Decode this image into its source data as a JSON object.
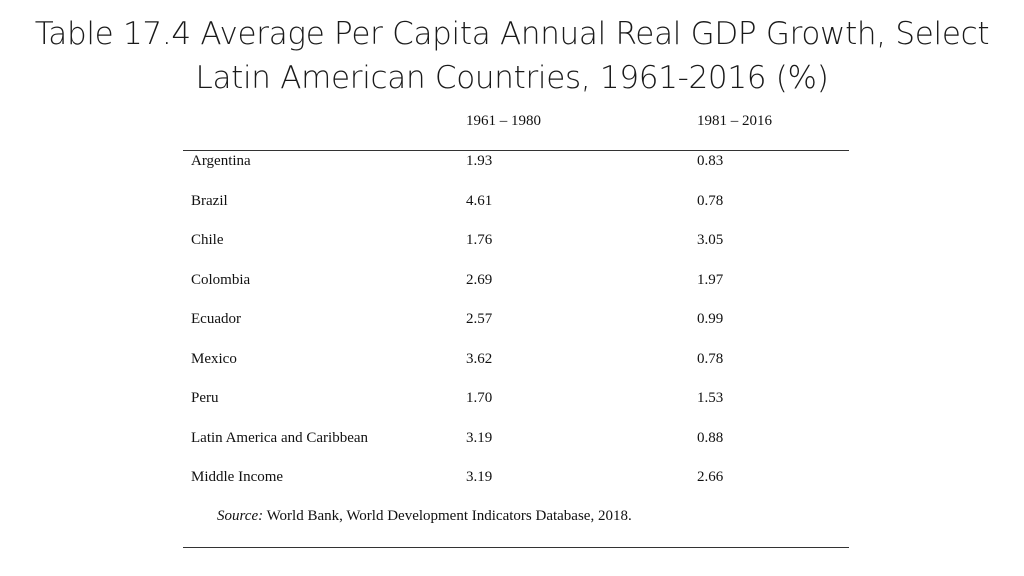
{
  "title": {
    "line1": "Table 17.4 Average Per Capita Annual Real GDP Growth, Select",
    "line2": "Latin American Countries, 1961-2016 (%)"
  },
  "table": {
    "headers": [
      "1961 – 1980",
      "1981 – 2016"
    ],
    "rows": [
      {
        "country": "Argentina",
        "p1": "1.93",
        "p2": "0.83"
      },
      {
        "country": "Brazil",
        "p1": "4.61",
        "p2": "0.78"
      },
      {
        "country": "Chile",
        "p1": "1.76",
        "p2": "3.05"
      },
      {
        "country": "Colombia",
        "p1": "2.69",
        "p2": "1.97"
      },
      {
        "country": "Ecuador",
        "p1": "2.57",
        "p2": "0.99"
      },
      {
        "country": "Mexico",
        "p1": "3.62",
        "p2": "0.78"
      },
      {
        "country": "Peru",
        "p1": "1.70",
        "p2": "1.53"
      },
      {
        "country": "Latin America and Caribbean",
        "p1": "3.19",
        "p2": "0.88"
      },
      {
        "country": "Middle Income",
        "p1": "3.19",
        "p2": "2.66"
      }
    ],
    "source_label": "Source:",
    "source_text": " World Bank, World Development Indicators Database, 2018."
  }
}
